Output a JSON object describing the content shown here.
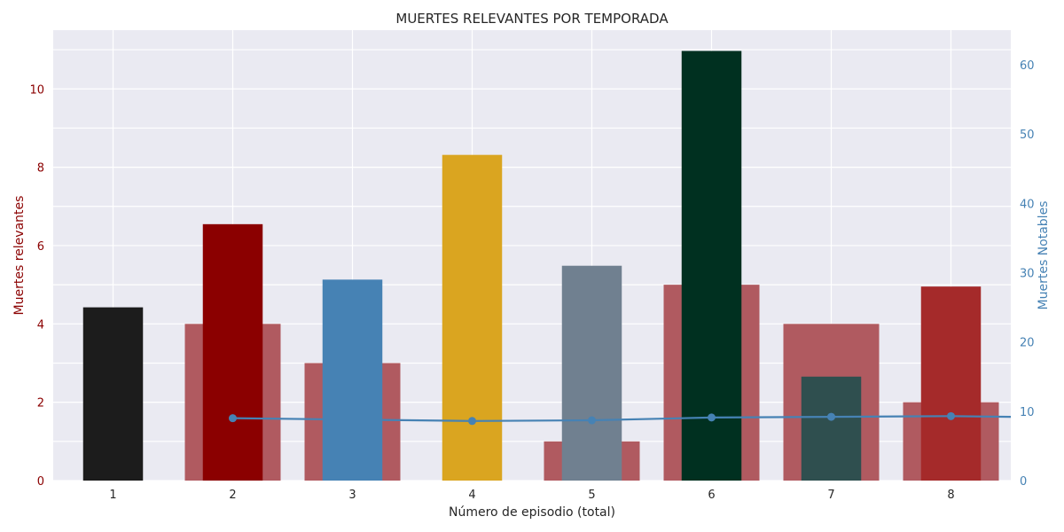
{
  "chart_data": {
    "type": "bar",
    "title": "MUERTES RELEVANTES POR TEMPORADA",
    "xlabel": "Número de episodio (total)",
    "ylabel_left": "Muertes relevantes",
    "ylabel_right": "Muertes Notables",
    "categories": [
      "1",
      "2",
      "3",
      "4",
      "5",
      "6",
      "7",
      "8"
    ],
    "x": [
      1,
      2,
      3,
      4,
      5,
      6,
      7,
      8
    ],
    "xlim": [
      0.5,
      8.5
    ],
    "ylim_left": [
      0,
      11.5
    ],
    "ylim_right": [
      0,
      65
    ],
    "yticks_left": [
      "0",
      "2",
      "4",
      "6",
      "8",
      "10"
    ],
    "yticks_right": [
      "0",
      "10",
      "20",
      "30",
      "40",
      "50",
      "60"
    ],
    "grid": true,
    "series": [
      {
        "axis": "left",
        "kind": "bar-wide",
        "color": "#b05a60",
        "x": [
          2,
          3,
          5,
          6,
          7,
          8
        ],
        "values": [
          4,
          3,
          1,
          5,
          4,
          2
        ]
      },
      {
        "axis": "right",
        "kind": "bar",
        "x": [
          1,
          2,
          3,
          4,
          5,
          6,
          7,
          8
        ],
        "values": [
          25,
          37,
          29,
          47,
          31,
          62,
          15,
          28
        ],
        "colors": [
          "#1c1c1c",
          "#8b0000",
          "#4682b4",
          "#daa520",
          "#708090",
          "#003020",
          "#2f4f4f",
          "#a52a2a"
        ]
      },
      {
        "axis": "right",
        "kind": "line",
        "color": "#4682b4",
        "x": [
          2,
          3,
          4,
          5,
          6,
          7,
          8,
          8.5
        ],
        "values": [
          9,
          8.8,
          8.6,
          8.7,
          9.1,
          9.2,
          9.3,
          9.2
        ],
        "markers_x": [
          2,
          4,
          5,
          6,
          7,
          8
        ]
      }
    ],
    "colors": {
      "plot_bg": "#eaeaf2",
      "grid": "#ffffff",
      "left_axis": "#8b0000",
      "right_axis": "#4682b4",
      "text": "#262626"
    }
  }
}
